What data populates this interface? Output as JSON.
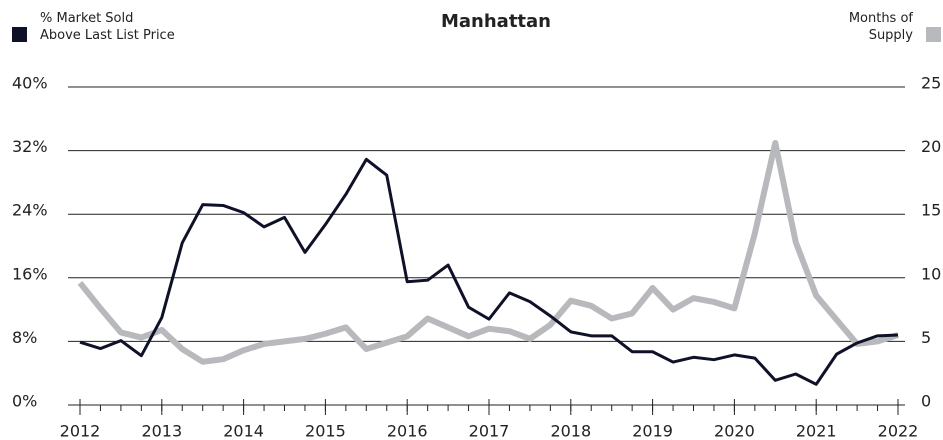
{
  "chart_data": {
    "type": "line",
    "title": "Manhattan",
    "x": [
      2012,
      2012.25,
      2012.5,
      2012.75,
      2013,
      2013.25,
      2013.5,
      2013.75,
      2014,
      2014.25,
      2014.5,
      2014.75,
      2015,
      2015.25,
      2015.5,
      2015.75,
      2016,
      2016.25,
      2016.5,
      2016.75,
      2017,
      2017.25,
      2017.5,
      2017.75,
      2018,
      2018.25,
      2018.5,
      2018.75,
      2019,
      2019.25,
      2019.5,
      2019.75,
      2020,
      2020.25,
      2020.5,
      2020.75,
      2021,
      2021.25,
      2021.5,
      2021.75,
      2022
    ],
    "series": [
      {
        "name": "% Market Sold\nAbove Last List Price",
        "color": "#0e1128",
        "axis": "y",
        "values": [
          7.9,
          7.1,
          8.1,
          6.2,
          11.0,
          20.4,
          25.2,
          25.1,
          24.2,
          22.4,
          23.6,
          19.2,
          22.7,
          26.5,
          30.9,
          28.9,
          15.5,
          15.7,
          17.6,
          12.3,
          10.8,
          14.1,
          13.0,
          11.2,
          9.2,
          8.7,
          8.7,
          6.7,
          6.7,
          5.4,
          6.0,
          5.7,
          6.3,
          5.9,
          3.1,
          3.9,
          2.6,
          6.4,
          7.8,
          8.7,
          8.8
        ]
      },
      {
        "name": "Months of\nSupply",
        "color": "#b8b9bd",
        "axis": "y2",
        "values": [
          9.6,
          7.6,
          5.7,
          5.3,
          5.9,
          4.4,
          3.4,
          3.6,
          4.3,
          4.8,
          5.0,
          5.2,
          5.6,
          6.1,
          4.4,
          4.9,
          5.4,
          6.8,
          6.1,
          5.4,
          6.0,
          5.8,
          5.2,
          6.3,
          8.2,
          7.8,
          6.8,
          7.2,
          9.2,
          7.5,
          8.4,
          8.1,
          7.6,
          13.5,
          20.6,
          12.8,
          8.6,
          6.7,
          4.8,
          5.0,
          5.5
        ]
      }
    ],
    "xlim": [
      2012,
      2022
    ],
    "xticks": [
      2012,
      2013,
      2014,
      2015,
      2016,
      2017,
      2018,
      2019,
      2020,
      2021,
      2022
    ],
    "ylim": [
      0,
      40
    ],
    "yticks": [
      {
        "value": 0,
        "label": "0%"
      },
      {
        "value": 8,
        "label": "8%"
      },
      {
        "value": 16,
        "label": "16%"
      },
      {
        "value": 24,
        "label": "24%"
      },
      {
        "value": 32,
        "label": "32%"
      },
      {
        "value": 40,
        "label": "40%"
      }
    ],
    "y2lim": [
      0,
      25
    ],
    "y2ticks": [
      0,
      5,
      10,
      15,
      20,
      25
    ],
    "grid": true
  }
}
